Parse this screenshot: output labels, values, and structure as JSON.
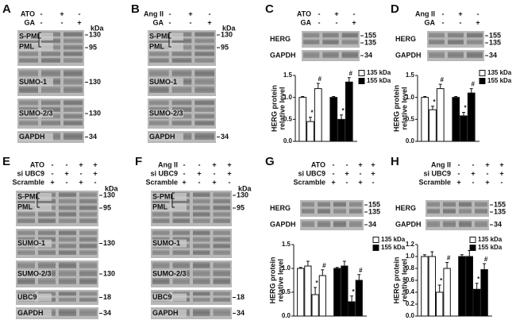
{
  "panels": [
    {
      "letter": "A",
      "unit": "kDa",
      "conditions": [
        {
          "name": "ATO",
          "signs": [
            "-",
            "+",
            "-"
          ]
        },
        {
          "name": "GA",
          "signs": [
            "-",
            "-",
            "+"
          ]
        }
      ],
      "blots": [
        {
          "labels": [
            "S-PML",
            "PML"
          ],
          "markers": [
            "130",
            "95"
          ]
        },
        {
          "labels": [
            "SUMO-1"
          ],
          "markers": [
            "130"
          ]
        },
        {
          "labels": [
            "SUMO-2/3"
          ],
          "markers": [
            "130"
          ]
        },
        {
          "labels": [
            "GAPDH"
          ],
          "markers": [
            "34"
          ]
        }
      ]
    },
    {
      "letter": "B",
      "unit": "kDa",
      "conditions": [
        {
          "name": "Ang II",
          "signs": [
            "-",
            "+",
            "-"
          ]
        },
        {
          "name": "GA",
          "signs": [
            "-",
            "-",
            "+"
          ]
        }
      ],
      "blots": [
        {
          "labels": [
            "S-PML",
            "PML"
          ],
          "markers": [
            "130",
            "95"
          ]
        },
        {
          "labels": [
            "SUMO-1"
          ],
          "markers": []
        },
        {
          "labels": [
            "SUMO-2/3"
          ],
          "markers": []
        },
        {
          "labels": [
            "GAPDH"
          ],
          "markers": [
            "34"
          ]
        }
      ]
    },
    {
      "letter": "C",
      "conditions": [
        {
          "name": "ATO",
          "signs": [
            "-",
            "+",
            "-"
          ]
        },
        {
          "name": "GA",
          "signs": [
            "-",
            "-",
            "+"
          ]
        }
      ],
      "blots": [
        {
          "labels": [
            "HERG"
          ],
          "markers": [
            "155",
            "135"
          ]
        },
        {
          "labels": [
            "GAPDH"
          ],
          "markers": [
            "34"
          ]
        }
      ]
    },
    {
      "letter": "D",
      "conditions": [
        {
          "name": "Ang II",
          "signs": [
            "-",
            "+",
            "-"
          ]
        },
        {
          "name": "GA",
          "signs": [
            "-",
            "-",
            "+"
          ]
        }
      ],
      "blots": [
        {
          "labels": [
            "HERG"
          ],
          "markers": [
            "155",
            "135"
          ]
        },
        {
          "labels": [
            "GAPDH"
          ],
          "markers": [
            "34"
          ]
        }
      ]
    },
    {
      "letter": "E",
      "unit": "kDa",
      "conditions": [
        {
          "name": "ATO",
          "signs": [
            "-",
            "-",
            "+",
            "+"
          ]
        },
        {
          "name": "si UBC9",
          "signs": [
            "-",
            "+",
            "-",
            "+"
          ]
        },
        {
          "name": "Scramble",
          "signs": [
            "+",
            "-",
            "+",
            "-"
          ]
        }
      ],
      "blots": [
        {
          "labels": [
            "S-PML",
            "PML"
          ],
          "markers": [
            "130",
            "95"
          ]
        },
        {
          "labels": [
            "SUMO-1"
          ],
          "markers": [
            "130"
          ]
        },
        {
          "labels": [
            "SUMO-2/3"
          ],
          "markers": [
            "130"
          ]
        },
        {
          "labels": [
            "UBC9"
          ],
          "markers": [
            "18"
          ]
        },
        {
          "labels": [
            "GAPDH"
          ],
          "markers": [
            "34"
          ]
        }
      ]
    },
    {
      "letter": "F",
      "unit": "kDa",
      "conditions": [
        {
          "name": "Ang II",
          "signs": [
            "-",
            "-",
            "+",
            "+"
          ]
        },
        {
          "name": "si UBC9",
          "signs": [
            "-",
            "+",
            "-",
            "+"
          ]
        },
        {
          "name": "Scramble",
          "signs": [
            "+",
            "-",
            "+",
            "-"
          ]
        }
      ],
      "blots": [
        {
          "labels": [
            "S-PML",
            "PML"
          ],
          "markers": [
            "130",
            "95"
          ]
        },
        {
          "labels": [
            "SUMO-1"
          ],
          "markers": []
        },
        {
          "labels": [
            "SUMO-2/3"
          ],
          "markers": []
        },
        {
          "labels": [
            "UBC9"
          ],
          "markers": [
            "18"
          ]
        },
        {
          "labels": [
            "GAPDH"
          ],
          "markers": [
            "34"
          ]
        }
      ]
    },
    {
      "letter": "G",
      "conditions": [
        {
          "name": "ATO",
          "signs": [
            "-",
            "-",
            "+",
            "+"
          ]
        },
        {
          "name": "si UBC9",
          "signs": [
            "-",
            "+",
            "-",
            "+"
          ]
        },
        {
          "name": "Scramble",
          "signs": [
            "+",
            "-",
            "+",
            "-"
          ]
        }
      ],
      "blots": [
        {
          "labels": [
            "HERG"
          ],
          "markers": [
            "155",
            "135"
          ]
        },
        {
          "labels": [
            "GAPDH"
          ],
          "markers": [
            "34"
          ]
        }
      ]
    },
    {
      "letter": "H",
      "conditions": [
        {
          "name": "Ang II",
          "signs": [
            "-",
            "-",
            "+",
            "+"
          ]
        },
        {
          "name": "si UBC9",
          "signs": [
            "-",
            "+",
            "-",
            "+"
          ]
        },
        {
          "name": "Scramble",
          "signs": [
            "+",
            "-",
            "+",
            "-"
          ]
        }
      ],
      "blots": [
        {
          "labels": [
            "HERG"
          ],
          "markers": [
            "155",
            "135"
          ]
        },
        {
          "labels": [
            "GAPDH"
          ],
          "markers": [
            "34"
          ]
        }
      ]
    }
  ],
  "chart_data": [
    {
      "type": "bar",
      "y_label": [
        "HERG protein",
        "relative level"
      ],
      "ylim": [
        0,
        1.5
      ],
      "yticks": [
        {
          "value": 0,
          "label": "0.0"
        },
        {
          "value": 0.5,
          "label": "0.5"
        },
        {
          "value": 1,
          "label": "1.0"
        },
        {
          "value": 1.5,
          "label": "1.5"
        }
      ],
      "series": [
        {
          "name": "135 kDa",
          "color": "#ffffff",
          "values": [
            1.0,
            0.45,
            1.2
          ],
          "errors": [
            0.02,
            0.1,
            0.12
          ],
          "significance": [
            null,
            "*",
            "#"
          ]
        },
        {
          "name": "155 kDa",
          "color": "#000000",
          "values": [
            1.0,
            0.5,
            1.35
          ],
          "errors": [
            0.02,
            0.1,
            0.1
          ],
          "significance": [
            null,
            "*",
            "#"
          ]
        }
      ]
    },
    {
      "type": "bar",
      "y_label": [
        "HERG protein",
        "relative level"
      ],
      "ylim": [
        0,
        1.5
      ],
      "yticks": [
        {
          "value": 0,
          "label": "0.0"
        },
        {
          "value": 0.5,
          "label": "0.5"
        },
        {
          "value": 1,
          "label": "1.0"
        },
        {
          "value": 1.5,
          "label": "1.5"
        }
      ],
      "series": [
        {
          "name": "135 kDa",
          "color": "#ffffff",
          "values": [
            1.0,
            0.72,
            1.2
          ],
          "errors": [
            0.02,
            0.08,
            0.1
          ],
          "significance": [
            null,
            "*",
            "#"
          ]
        },
        {
          "name": "155 kDa",
          "color": "#000000",
          "values": [
            1.0,
            0.58,
            1.1
          ],
          "errors": [
            0.02,
            0.08,
            0.1
          ],
          "significance": [
            null,
            "*",
            "#"
          ]
        }
      ]
    },
    {
      "type": "bar",
      "y_label": [
        "HERG protein",
        "relative level"
      ],
      "ylim": [
        0,
        1.5
      ],
      "yticks": [
        {
          "value": 0,
          "label": "0.0"
        },
        {
          "value": 0.5,
          "label": "0.5"
        },
        {
          "value": 1,
          "label": "1.0"
        },
        {
          "value": 1.5,
          "label": "1.5"
        }
      ],
      "series": [
        {
          "name": "135 kDa",
          "color": "#ffffff",
          "values": [
            1.0,
            1.05,
            0.45,
            0.85
          ],
          "errors": [
            0.02,
            0.1,
            0.15,
            0.12
          ],
          "significance": [
            null,
            null,
            "*",
            "#"
          ]
        },
        {
          "name": "155 kDa",
          "color": "#000000",
          "values": [
            1.0,
            1.05,
            0.3,
            0.75
          ],
          "errors": [
            0.02,
            0.1,
            0.12,
            0.12
          ],
          "significance": [
            null,
            null,
            "*",
            "#"
          ]
        }
      ]
    },
    {
      "type": "bar",
      "y_label": [
        "HERG protein",
        "relative level"
      ],
      "ylim": [
        0,
        1.2
      ],
      "yticks": [
        {
          "value": 0,
          "label": "0.0"
        },
        {
          "value": 0.2,
          "label": "0.2"
        },
        {
          "value": 0.4,
          "label": "0.4"
        },
        {
          "value": 0.6,
          "label": "0.6"
        },
        {
          "value": 0.8,
          "label": "0.8"
        },
        {
          "value": 1,
          "label": "1.0"
        },
        {
          "value": 1.2,
          "label": "1.2"
        }
      ],
      "series": [
        {
          "name": "135 kDa",
          "color": "#ffffff",
          "values": [
            1.0,
            1.0,
            0.4,
            0.8
          ],
          "errors": [
            0.03,
            0.08,
            0.12,
            0.1
          ],
          "significance": [
            null,
            null,
            "*",
            "#"
          ]
        },
        {
          "name": "155 kDa",
          "color": "#000000",
          "values": [
            1.0,
            1.0,
            0.45,
            0.78
          ],
          "errors": [
            0.03,
            0.1,
            0.1,
            0.1
          ],
          "significance": [
            null,
            null,
            "*",
            "#"
          ]
        }
      ]
    }
  ]
}
